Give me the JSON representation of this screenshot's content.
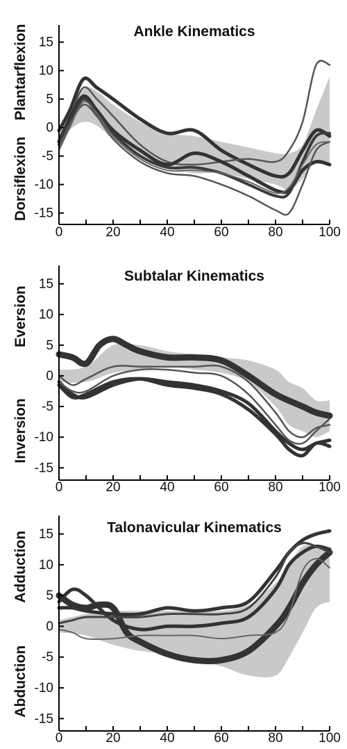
{
  "chart_data": [
    {
      "type": "line",
      "title": "Ankle Kinematics",
      "ylabel_top": "Plantarflexion",
      "ylabel_bottom": "Dorsiflexion",
      "x_ticks": [
        0,
        20,
        40,
        60,
        80,
        100
      ],
      "y_ticks": [
        15,
        10,
        5,
        0,
        -5,
        -10,
        -15
      ],
      "xlim": [
        0,
        100
      ],
      "ylim": [
        -17,
        18
      ],
      "band": {
        "x": [
          0,
          5,
          10,
          15,
          20,
          30,
          40,
          50,
          60,
          70,
          80,
          85,
          90,
          95,
          100
        ],
        "upper": [
          -1,
          4,
          7,
          6,
          4,
          1,
          -1,
          -1.5,
          -2.5,
          -3.5,
          -4.5,
          -4.5,
          -3,
          3,
          9
        ],
        "lower": [
          -3,
          0,
          1,
          0,
          -2,
          -5,
          -7,
          -8,
          -8,
          -9,
          -10,
          -11,
          -9,
          -6,
          -6.5
        ]
      },
      "series": [
        {
          "x": [
            0,
            4,
            9,
            14,
            20,
            30,
            40,
            50,
            60,
            70,
            80,
            85,
            90,
            95,
            100
          ],
          "y": [
            -0.5,
            3,
            8.5,
            7,
            5,
            1.5,
            -1,
            -0.5,
            -4,
            -6.5,
            -8.5,
            -8,
            -4,
            -0.5,
            -1.5
          ],
          "w": 5,
          "c": "#333333"
        },
        {
          "x": [
            0,
            4,
            9,
            14,
            20,
            30,
            40,
            50,
            60,
            70,
            80,
            85,
            90,
            95,
            100
          ],
          "y": [
            -2,
            2,
            7,
            5,
            2,
            -3,
            -6,
            -6.5,
            -6,
            -5.5,
            -6,
            -4,
            1,
            11,
            11
          ],
          "w": 2.5,
          "c": "#555555"
        },
        {
          "x": [
            0,
            4,
            9,
            14,
            20,
            30,
            40,
            50,
            60,
            70,
            80,
            85,
            90,
            95,
            100
          ],
          "y": [
            -2.5,
            1.5,
            5.5,
            3,
            -0.5,
            -4,
            -6.5,
            -4.5,
            -6,
            -8.5,
            -11,
            -11,
            -7.5,
            -6,
            -6.5
          ],
          "w": 5,
          "c": "#333333"
        },
        {
          "x": [
            0,
            4,
            9,
            14,
            20,
            30,
            40,
            50,
            60,
            70,
            80,
            85,
            90,
            95,
            100
          ],
          "y": [
            -3,
            1,
            5,
            2.5,
            -1,
            -5,
            -7,
            -7,
            -8,
            -10,
            -12,
            -11.5,
            -6,
            -1.5,
            -1
          ],
          "w": 4,
          "c": "#3a3a3a"
        },
        {
          "x": [
            0,
            4,
            9,
            14,
            20,
            30,
            40,
            50,
            60,
            70,
            80,
            85,
            90,
            95,
            100
          ],
          "y": [
            -3.5,
            0.5,
            4,
            2,
            -2,
            -6,
            -8,
            -8.5,
            -10,
            -12,
            -14.5,
            -15,
            -10,
            -4,
            -2.5
          ],
          "w": 2.5,
          "c": "#555555"
        },
        {
          "x": [
            0,
            4,
            9,
            14,
            20,
            30,
            40,
            50,
            60,
            70,
            80,
            85,
            90,
            95,
            100
          ],
          "y": [
            -4,
            0,
            4.5,
            2.5,
            -1.5,
            -5.5,
            -7.5,
            -7.5,
            -8,
            -9.5,
            -11.5,
            -10.5,
            -6.5,
            -3,
            -2.5
          ],
          "w": 2,
          "c": "#666666"
        }
      ]
    },
    {
      "type": "line",
      "title": "Subtalar Kinematics",
      "ylabel_top": "Eversion",
      "ylabel_bottom": "Inversion",
      "x_ticks": [
        0,
        20,
        40,
        60,
        80,
        100
      ],
      "y_ticks": [
        15,
        10,
        5,
        0,
        -5,
        -10,
        -15
      ],
      "xlim": [
        0,
        100
      ],
      "ylim": [
        -17,
        18
      ],
      "band": {
        "x": [
          0,
          10,
          20,
          30,
          40,
          50,
          60,
          70,
          80,
          85,
          90,
          95,
          100
        ],
        "upper": [
          1,
          1.5,
          5,
          5,
          4,
          3.5,
          3,
          2.5,
          1,
          -1,
          -2,
          -4,
          -4
        ],
        "lower": [
          -1,
          -1,
          0.5,
          1,
          1.5,
          1,
          0.5,
          -1,
          -5,
          -8,
          -9,
          -10,
          -9
        ]
      },
      "series": [
        {
          "x": [
            0,
            5,
            10,
            15,
            20,
            25,
            30,
            40,
            50,
            60,
            70,
            80,
            90,
            95,
            100
          ],
          "y": [
            3.5,
            3,
            2,
            5,
            6,
            5,
            4,
            3,
            3,
            2.5,
            0,
            -3,
            -5,
            -6,
            -6.5
          ],
          "w": 9,
          "c": "#333333"
        },
        {
          "x": [
            0,
            5,
            10,
            20,
            30,
            40,
            50,
            60,
            70,
            80,
            85,
            90,
            95,
            100
          ],
          "y": [
            -1,
            -3,
            -3.5,
            -1.5,
            -0.5,
            -1,
            -1.5,
            -2.5,
            -4.5,
            -9,
            -11,
            -12,
            -11,
            -10.5
          ],
          "w": 5,
          "c": "#333333"
        },
        {
          "x": [
            0,
            5,
            10,
            20,
            30,
            40,
            50,
            60,
            70,
            80,
            85,
            90,
            95,
            100
          ],
          "y": [
            -1.5,
            -3.5,
            -3,
            -1,
            -0.5,
            -1.5,
            -2,
            -3,
            -5.5,
            -9.5,
            -12,
            -13,
            -11,
            -11.5
          ],
          "w": 5,
          "c": "#333333"
        },
        {
          "x": [
            0,
            5,
            10,
            20,
            30,
            40,
            50,
            60,
            70,
            80,
            85,
            90,
            95,
            100
          ],
          "y": [
            -1,
            -2.5,
            -2.5,
            0,
            1,
            1,
            0.5,
            0,
            -3,
            -8,
            -10.5,
            -11,
            -9,
            -7
          ],
          "w": 2.5,
          "c": "#555555"
        },
        {
          "x": [
            0,
            5,
            10,
            20,
            30,
            40,
            50,
            60,
            70,
            80,
            85,
            90,
            95,
            100
          ],
          "y": [
            0,
            -1.5,
            -0.5,
            1.5,
            1.5,
            1.5,
            1.5,
            1.5,
            -1,
            -6,
            -9,
            -10,
            -8.5,
            -8
          ],
          "w": 2.5,
          "c": "#555555"
        }
      ]
    },
    {
      "type": "line",
      "title": "Talonavicular Kinematics",
      "ylabel_top": "Adduction",
      "ylabel_bottom": "Abduction",
      "x_ticks": [
        0,
        20,
        40,
        60,
        80,
        100
      ],
      "y_ticks": [
        15,
        10,
        5,
        0,
        -5,
        -10,
        -15
      ],
      "xlim": [
        0,
        100
      ],
      "ylim": [
        -17,
        18
      ],
      "band": {
        "x": [
          0,
          10,
          20,
          30,
          40,
          50,
          60,
          70,
          80,
          85,
          90,
          95,
          100
        ],
        "upper": [
          1,
          2,
          2.5,
          2.5,
          2.5,
          2.5,
          2.5,
          3.5,
          7,
          10,
          13,
          13,
          12
        ],
        "lower": [
          -1,
          -1.5,
          -3,
          -4,
          -4.5,
          -5.5,
          -6.5,
          -8,
          -8,
          -5,
          -1,
          3,
          4
        ]
      },
      "series": [
        {
          "x": [
            0,
            5,
            10,
            15,
            20,
            25,
            30,
            40,
            50,
            60,
            70,
            80,
            85,
            90,
            95,
            100
          ],
          "y": [
            5,
            3.5,
            3,
            3.5,
            3,
            -1,
            -2.5,
            -4.5,
            -5.5,
            -5.5,
            -4,
            0,
            3,
            7,
            10,
            12
          ],
          "w": 9,
          "c": "#333333"
        },
        {
          "x": [
            0,
            5,
            10,
            20,
            30,
            40,
            50,
            60,
            70,
            80,
            85,
            90,
            95,
            100
          ],
          "y": [
            3,
            3,
            2.5,
            2,
            2,
            3,
            2.5,
            3,
            4,
            9,
            12,
            14,
            15,
            15.5
          ],
          "w": 5,
          "c": "#333333"
        },
        {
          "x": [
            0,
            5,
            10,
            20,
            30,
            40,
            50,
            60,
            70,
            80,
            85,
            90,
            95,
            100
          ],
          "y": [
            4,
            6,
            5,
            1,
            -0.5,
            0,
            0,
            0.5,
            1.5,
            6,
            10,
            12,
            13,
            12.5
          ],
          "w": 5,
          "c": "#333333"
        },
        {
          "x": [
            0,
            5,
            10,
            20,
            30,
            40,
            50,
            60,
            70,
            80,
            85,
            90,
            95,
            100
          ],
          "y": [
            0.5,
            1,
            1.5,
            1.5,
            1.5,
            2,
            2,
            2,
            3,
            8,
            12,
            13.5,
            13,
            12
          ],
          "w": 3,
          "c": "#444444"
        },
        {
          "x": [
            0,
            5,
            10,
            20,
            30,
            40,
            50,
            60,
            70,
            80,
            85,
            90,
            95,
            100
          ],
          "y": [
            -0.5,
            -1,
            -2,
            -2,
            -1.5,
            -1.5,
            -1.5,
            -2,
            -1.5,
            -1,
            2,
            9,
            11,
            9.5
          ],
          "w": 2,
          "c": "#666666"
        }
      ]
    }
  ]
}
